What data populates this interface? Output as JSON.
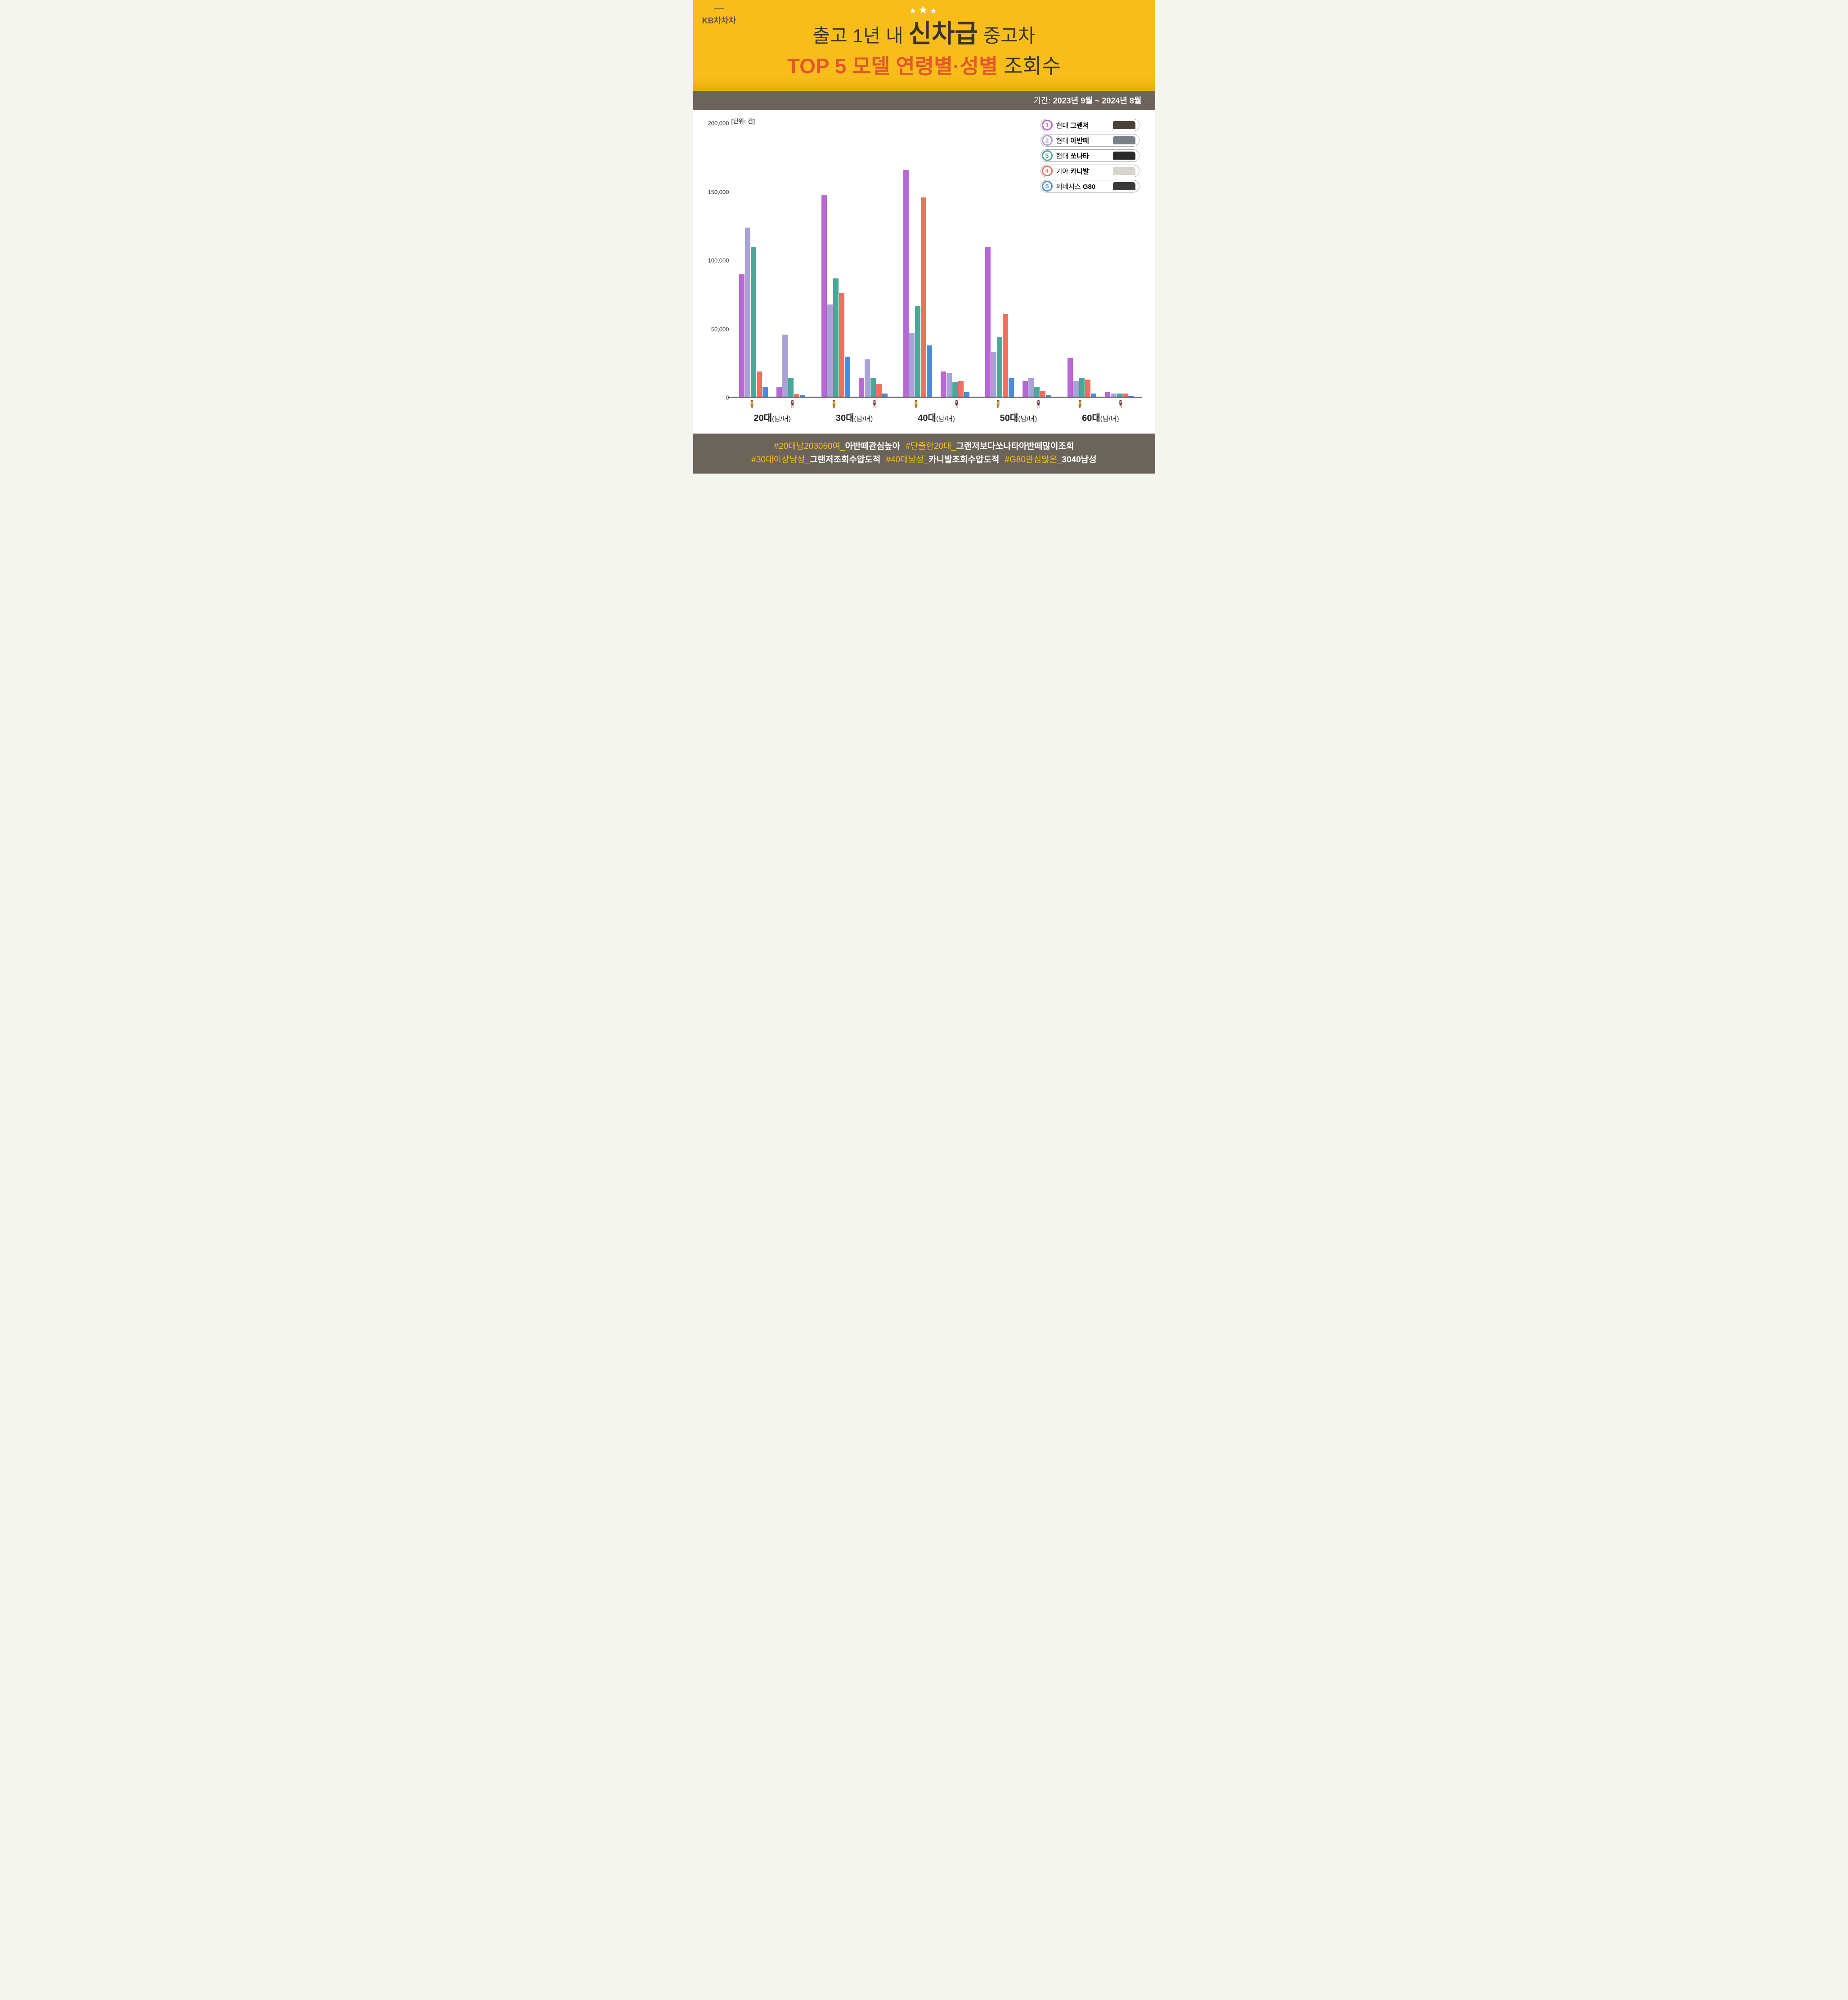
{
  "logo": {
    "brand": "KB",
    "product": "차차차"
  },
  "header": {
    "line1_pre": "출고 1년 내 ",
    "line1_big": "신차급",
    "line1_post": " 중고차",
    "line2_accent": "TOP 5 모델 연령별·성별",
    "line2_post": " 조회수"
  },
  "period": {
    "label": "기간: ",
    "value": "2023년 9월 ~ 2024년 8월"
  },
  "chart": {
    "unit_label": "[단위: 건]",
    "ylim": [
      0,
      200000
    ],
    "yticks": [
      0,
      50000,
      100000,
      150000,
      200000
    ],
    "ytick_labels": [
      "0",
      "50,000",
      "100,000",
      "150,000",
      "200,000"
    ],
    "series": [
      {
        "rank": 1,
        "brand": "현대",
        "model": "그랜저",
        "color": "#b668d4",
        "car_color": "#4a4238"
      },
      {
        "rank": 2,
        "brand": "현대",
        "model": "아반떼",
        "color": "#a9a2d6",
        "car_color": "#7a8088"
      },
      {
        "rank": 3,
        "brand": "현대",
        "model": "쏘나타",
        "color": "#4aa89a",
        "car_color": "#2a2a2a"
      },
      {
        "rank": 4,
        "brand": "기아",
        "model": "카니발",
        "color": "#f07060",
        "car_color": "#d8d4cc"
      },
      {
        "rank": 5,
        "brand": "제네시스",
        "model": "G80",
        "color": "#4a8cd8",
        "car_color": "#3a3a3a"
      }
    ],
    "groups": [
      {
        "age": "20대",
        "sub": "(남/녀)",
        "male": [
          90000,
          124000,
          110000,
          19000,
          8000
        ],
        "female": [
          8000,
          46000,
          14000,
          2500,
          2000
        ]
      },
      {
        "age": "30대",
        "sub": "(남/녀)",
        "male": [
          148000,
          68000,
          87000,
          76000,
          30000
        ],
        "female": [
          14000,
          28000,
          14000,
          10000,
          3000
        ]
      },
      {
        "age": "40대",
        "sub": "(남/녀)",
        "male": [
          166000,
          47000,
          67000,
          146000,
          38000
        ],
        "female": [
          19000,
          18000,
          11000,
          12000,
          4000
        ]
      },
      {
        "age": "50대",
        "sub": "(남/녀)",
        "male": [
          110000,
          33000,
          44000,
          61000,
          14000
        ],
        "female": [
          12000,
          14000,
          8000,
          5000,
          2000
        ]
      },
      {
        "age": "60대",
        "sub": "(남/녀)",
        "male": [
          29000,
          12000,
          14000,
          13000,
          3000
        ],
        "female": [
          4000,
          3000,
          3000,
          3000,
          1000
        ]
      }
    ],
    "male_icon_label": "남",
    "female_icon_label": "녀",
    "male_icon_color": "#3bb4e8",
    "female_icon_color": "#e85a8a"
  },
  "hashtags": [
    {
      "pre": "#20대남203050여_",
      "em": "아반떼관심높아"
    },
    {
      "pre": "#단출한20대_",
      "em": "그랜저보다쏘나타아반떼많이조회"
    },
    {
      "pre": "#30대이상남성_",
      "em": "그랜저조회수압도적"
    },
    {
      "pre": "#40대남성_",
      "em": "카니발조회수압도적"
    },
    {
      "pre": "#G80관심많은_",
      "em": "3040남성"
    }
  ]
}
